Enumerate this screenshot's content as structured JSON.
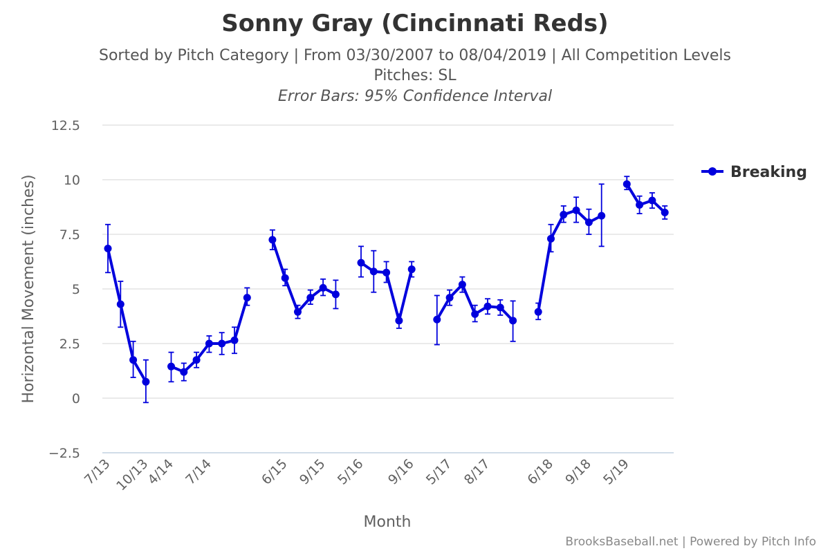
{
  "header": {
    "title": "Sonny Gray (Cincinnati Reds)",
    "subtitle_line1": "Sorted by Pitch Category | From 03/30/2007 to 08/04/2019 | All Competition Levels",
    "subtitle_line2": "Pitches: SL",
    "subtitle_line3": "Error Bars: 95% Confidence Interval"
  },
  "credit": "BrooksBaseball.net | Powered by Pitch Info",
  "colors": {
    "series": "#0000dd",
    "grid": "#dddddd",
    "axis_line": "#c0d0e0",
    "text": "#606060"
  },
  "chart_data": {
    "type": "line",
    "xlabel": "Month",
    "ylabel": "Horizontal Movement (inches)",
    "ylim": [
      -2.5,
      12.5
    ],
    "yticks": [
      -2.5,
      0,
      2.5,
      5,
      7.5,
      10,
      12.5
    ],
    "ytick_labels": [
      "−2.5",
      "0",
      "2.5",
      "5",
      "7.5",
      "10",
      "12.5"
    ],
    "xtick_labels": [
      {
        "label": "7/13",
        "at": 0
      },
      {
        "label": "10/13",
        "at": 3
      },
      {
        "label": "4/14",
        "at": 5
      },
      {
        "label": "7/14",
        "at": 8
      },
      {
        "label": "6/15",
        "at": 14
      },
      {
        "label": "9/15",
        "at": 17
      },
      {
        "label": "5/16",
        "at": 20
      },
      {
        "label": "9/16",
        "at": 24
      },
      {
        "label": "5/17",
        "at": 27
      },
      {
        "label": "8/17",
        "at": 30
      },
      {
        "label": "6/18",
        "at": 35
      },
      {
        "label": "9/18",
        "at": 38
      },
      {
        "label": "5/19",
        "at": 41
      }
    ],
    "legend": {
      "position": "right-top"
    },
    "grid": true,
    "series": [
      {
        "name": "Breaking",
        "segments": [
          [
            {
              "x": 0,
              "y": 6.85,
              "lo": 5.75,
              "hi": 7.95
            },
            {
              "x": 1,
              "y": 4.3,
              "lo": 3.25,
              "hi": 5.35
            },
            {
              "x": 2,
              "y": 1.75,
              "lo": 0.95,
              "hi": 2.6
            },
            {
              "x": 3,
              "y": 0.75,
              "lo": -0.2,
              "hi": 1.75
            }
          ],
          [
            {
              "x": 5,
              "y": 1.45,
              "lo": 0.75,
              "hi": 2.1
            },
            {
              "x": 6,
              "y": 1.2,
              "lo": 0.8,
              "hi": 1.6
            },
            {
              "x": 7,
              "y": 1.75,
              "lo": 1.4,
              "hi": 2.1
            },
            {
              "x": 8,
              "y": 2.5,
              "lo": 2.1,
              "hi": 2.85
            },
            {
              "x": 9,
              "y": 2.5,
              "lo": 2.0,
              "hi": 3.0
            },
            {
              "x": 10,
              "y": 2.65,
              "lo": 2.05,
              "hi": 3.25
            },
            {
              "x": 11,
              "y": 4.6,
              "lo": 4.25,
              "hi": 5.05
            }
          ],
          [
            {
              "x": 13,
              "y": 7.25,
              "lo": 6.8,
              "hi": 7.7
            },
            {
              "x": 14,
              "y": 5.5,
              "lo": 5.15,
              "hi": 5.9
            },
            {
              "x": 15,
              "y": 3.95,
              "lo": 3.65,
              "hi": 4.25
            },
            {
              "x": 16,
              "y": 4.6,
              "lo": 4.3,
              "hi": 4.95
            },
            {
              "x": 17,
              "y": 5.05,
              "lo": 4.7,
              "hi": 5.45
            },
            {
              "x": 18,
              "y": 4.75,
              "lo": 4.1,
              "hi": 5.4
            }
          ],
          [
            {
              "x": 20,
              "y": 6.2,
              "lo": 5.55,
              "hi": 6.95
            },
            {
              "x": 21,
              "y": 5.8,
              "lo": 4.85,
              "hi": 6.75
            },
            {
              "x": 22,
              "y": 5.75,
              "lo": 5.3,
              "hi": 6.25
            },
            {
              "x": 23,
              "y": 3.55,
              "lo": 3.2,
              "hi": 3.85
            },
            {
              "x": 24,
              "y": 5.9,
              "lo": 5.55,
              "hi": 6.25
            }
          ],
          [
            {
              "x": 26,
              "y": 3.6,
              "lo": 2.45,
              "hi": 4.7
            },
            {
              "x": 27,
              "y": 4.6,
              "lo": 4.25,
              "hi": 4.95
            },
            {
              "x": 28,
              "y": 5.2,
              "lo": 4.85,
              "hi": 5.55
            },
            {
              "x": 29,
              "y": 3.85,
              "lo": 3.5,
              "hi": 4.25
            },
            {
              "x": 30,
              "y": 4.2,
              "lo": 3.85,
              "hi": 4.55
            },
            {
              "x": 31,
              "y": 4.15,
              "lo": 3.8,
              "hi": 4.5
            },
            {
              "x": 32,
              "y": 3.55,
              "lo": 2.6,
              "hi": 4.45
            }
          ],
          [
            {
              "x": 34,
              "y": 3.95,
              "lo": 3.6,
              "hi": 4.35
            },
            {
              "x": 35,
              "y": 7.3,
              "lo": 6.7,
              "hi": 7.95
            },
            {
              "x": 36,
              "y": 8.4,
              "lo": 8.05,
              "hi": 8.8
            },
            {
              "x": 37,
              "y": 8.6,
              "lo": 8.05,
              "hi": 9.2
            },
            {
              "x": 38,
              "y": 8.05,
              "lo": 7.5,
              "hi": 8.65
            },
            {
              "x": 39,
              "y": 8.35,
              "lo": 6.95,
              "hi": 9.8
            }
          ],
          [
            {
              "x": 41,
              "y": 9.8,
              "lo": 9.55,
              "hi": 10.15
            },
            {
              "x": 42,
              "y": 8.85,
              "lo": 8.45,
              "hi": 9.25
            },
            {
              "x": 43,
              "y": 9.05,
              "lo": 8.7,
              "hi": 9.4
            },
            {
              "x": 44,
              "y": 8.5,
              "lo": 8.2,
              "hi": 8.8
            }
          ]
        ]
      }
    ]
  }
}
